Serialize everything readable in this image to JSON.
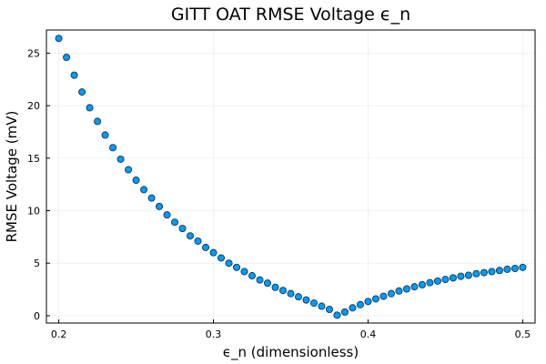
{
  "chart_data": {
    "type": "scatter",
    "title": "GITT OAT RMSE Voltage ϵ_n",
    "xlabel": "ϵ_n (dimensionless)",
    "ylabel": "RMSE Voltage (mV)",
    "xlim": [
      0.192,
      0.508
    ],
    "ylim": [
      -0.7,
      27.2
    ],
    "x_ticks": [
      0.2,
      0.3,
      0.4,
      0.5
    ],
    "x_tick_labels": [
      "0.2",
      "0.3",
      "0.4",
      "0.5"
    ],
    "y_ticks": [
      0,
      5,
      10,
      15,
      20,
      25
    ],
    "y_tick_labels": [
      "0",
      "5",
      "10",
      "15",
      "20",
      "25"
    ],
    "grid": true,
    "legend": "none",
    "marker_color": "#009af9",
    "series": [
      {
        "name": "y1",
        "x": [
          0.2,
          0.205,
          0.21,
          0.215,
          0.22,
          0.225,
          0.23,
          0.235,
          0.24,
          0.245,
          0.25,
          0.255,
          0.26,
          0.265,
          0.27,
          0.275,
          0.28,
          0.285,
          0.29,
          0.295,
          0.3,
          0.305,
          0.31,
          0.315,
          0.32,
          0.325,
          0.33,
          0.335,
          0.34,
          0.345,
          0.35,
          0.355,
          0.36,
          0.365,
          0.37,
          0.375,
          0.38,
          0.385,
          0.39,
          0.395,
          0.4,
          0.405,
          0.41,
          0.415,
          0.42,
          0.425,
          0.43,
          0.435,
          0.44,
          0.445,
          0.45,
          0.455,
          0.46,
          0.465,
          0.47,
          0.475,
          0.48,
          0.485,
          0.49,
          0.495,
          0.5
        ],
        "values": [
          26.4,
          24.6,
          22.9,
          21.3,
          19.8,
          18.5,
          17.2,
          16.0,
          14.9,
          13.9,
          12.9,
          12.0,
          11.2,
          10.4,
          9.6,
          8.9,
          8.3,
          7.6,
          7.1,
          6.5,
          6.0,
          5.5,
          5.0,
          4.6,
          4.2,
          3.8,
          3.4,
          3.1,
          2.7,
          2.4,
          2.1,
          1.8,
          1.5,
          1.2,
          0.9,
          0.6,
          0.05,
          0.35,
          0.75,
          1.05,
          1.35,
          1.6,
          1.85,
          2.1,
          2.35,
          2.55,
          2.75,
          2.95,
          3.15,
          3.3,
          3.45,
          3.6,
          3.75,
          3.85,
          4.0,
          4.1,
          4.2,
          4.3,
          4.42,
          4.5,
          4.6
        ]
      }
    ]
  }
}
